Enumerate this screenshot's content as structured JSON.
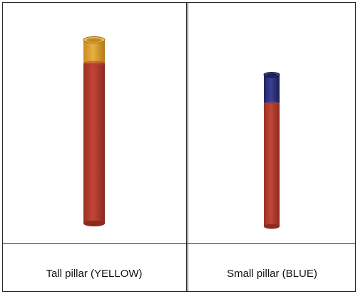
{
  "captions": {
    "left": "Tall pillar (YELLOW)",
    "right": "Small pillar (BLUE)"
  },
  "colors": {
    "pillar_body": "#b63b2e",
    "pillar_body_dark": "#8f2a20",
    "yellow_cap": "#e0a532",
    "yellow_cap_dark": "#b07a1c",
    "blue_cap": "#2a2f7a",
    "blue_cap_dark": "#1a1d52",
    "border": "#2a2a2a"
  },
  "pillars": {
    "left": {
      "cap_color_name": "yellow"
    },
    "right": {
      "cap_color_name": "blue"
    }
  }
}
